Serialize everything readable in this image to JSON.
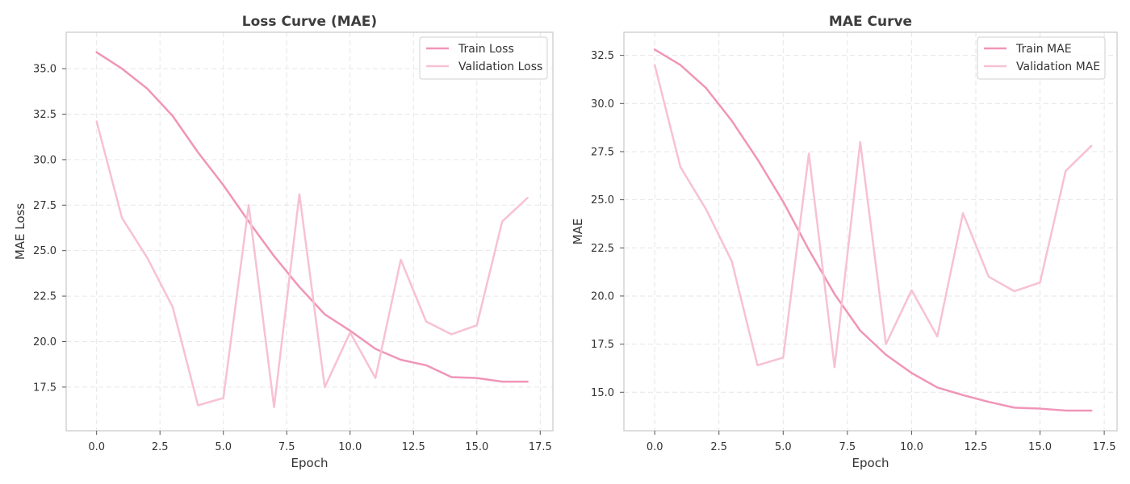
{
  "chart_data": [
    {
      "type": "line",
      "title": "Loss Curve (MAE)",
      "xlabel": "Epoch",
      "ylabel": "MAE Loss",
      "xlim": [
        -1.2,
        18.0
      ],
      "ylim": [
        15.1,
        37.0
      ],
      "xticks": [
        0.0,
        2.5,
        5.0,
        7.5,
        10.0,
        12.5,
        15.0,
        17.5
      ],
      "xtick_labels": [
        "0.0",
        "2.5",
        "5.0",
        "7.5",
        "10.0",
        "12.5",
        "15.0",
        "17.5"
      ],
      "yticks": [
        17.5,
        20.0,
        22.5,
        25.0,
        27.5,
        30.0,
        32.5,
        35.0
      ],
      "ytick_labels": [
        "17.5",
        "20.0",
        "22.5",
        "25.0",
        "27.5",
        "30.0",
        "32.5",
        "35.0"
      ],
      "grid": true,
      "legend_position": "top-right",
      "x": [
        0,
        1,
        2,
        3,
        4,
        5,
        6,
        7,
        8,
        9,
        10,
        11,
        12,
        13,
        14,
        15,
        16,
        17
      ],
      "series": [
        {
          "name": "Train Loss",
          "color": "#f095b8",
          "values": [
            35.9,
            35.0,
            33.9,
            32.4,
            30.4,
            28.6,
            26.6,
            24.7,
            23.0,
            21.5,
            20.6,
            19.6,
            19.0,
            18.7,
            18.05,
            18.0,
            17.8,
            17.8
          ]
        },
        {
          "name": "Validation Loss",
          "color": "#f7c1d4",
          "values": [
            32.1,
            26.8,
            24.6,
            21.9,
            16.5,
            16.9,
            27.5,
            16.4,
            28.1,
            17.5,
            20.5,
            18.0,
            24.5,
            21.1,
            20.4,
            20.9,
            26.6,
            27.9
          ]
        }
      ]
    },
    {
      "type": "line",
      "title": "MAE Curve",
      "xlabel": "Epoch",
      "ylabel": "MAE",
      "xlim": [
        -1.2,
        18.0
      ],
      "ylim": [
        13.0,
        33.7
      ],
      "xticks": [
        0.0,
        2.5,
        5.0,
        7.5,
        10.0,
        12.5,
        15.0,
        17.5
      ],
      "xtick_labels": [
        "0.0",
        "2.5",
        "5.0",
        "7.5",
        "10.0",
        "12.5",
        "15.0",
        "17.5"
      ],
      "yticks": [
        15.0,
        17.5,
        20.0,
        22.5,
        25.0,
        27.5,
        30.0,
        32.5
      ],
      "ytick_labels": [
        "15.0",
        "17.5",
        "20.0",
        "22.5",
        "25.0",
        "27.5",
        "30.0",
        "32.5"
      ],
      "grid": true,
      "legend_position": "top-right",
      "x": [
        0,
        1,
        2,
        3,
        4,
        5,
        6,
        7,
        8,
        9,
        10,
        11,
        12,
        13,
        14,
        15,
        16,
        17
      ],
      "series": [
        {
          "name": "Train MAE",
          "color": "#f095b8",
          "values": [
            32.8,
            32.0,
            30.8,
            29.1,
            27.1,
            24.9,
            22.4,
            20.1,
            18.2,
            16.95,
            16.0,
            15.25,
            14.85,
            14.5,
            14.2,
            14.15,
            14.05,
            14.05
          ]
        },
        {
          "name": "Validation MAE",
          "color": "#f7c1d4",
          "values": [
            32.0,
            26.7,
            24.5,
            21.8,
            16.4,
            16.8,
            27.4,
            16.3,
            28.0,
            17.5,
            20.3,
            17.9,
            24.3,
            21.0,
            20.25,
            20.7,
            26.5,
            27.8
          ]
        }
      ]
    }
  ]
}
